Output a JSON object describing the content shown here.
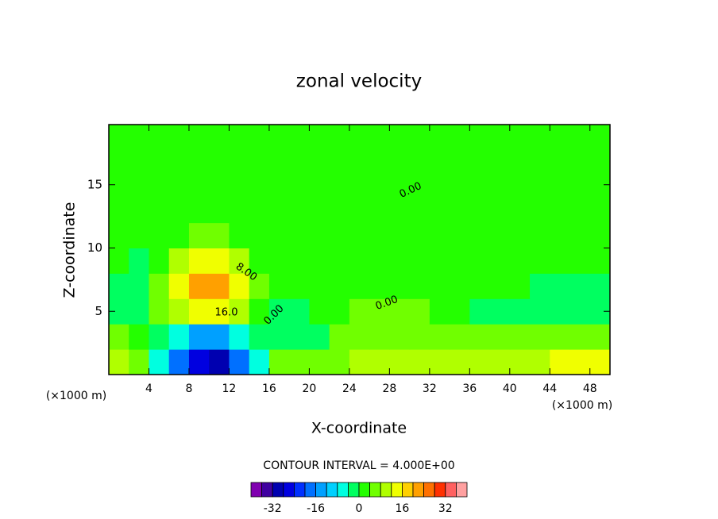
{
  "chart_data": {
    "type": "contour",
    "title": "zonal velocity",
    "xlabel": "X-coordinate",
    "ylabel": "Z-coordinate",
    "x_unit": "(×1000 m)",
    "contour_interval_text": "CONTOUR INTERVAL = 4.000E+00",
    "contour_labels": [
      "0.00",
      "8.00",
      "16.0",
      "0.00",
      "0.00"
    ],
    "xlim": [
      0,
      50
    ],
    "ylim": [
      0,
      19.75
    ],
    "xticks": [
      4,
      8,
      12,
      16,
      20,
      24,
      28,
      32,
      36,
      40,
      44,
      48
    ],
    "yticks": [
      5,
      10,
      15
    ],
    "x": [
      1,
      3,
      5,
      7,
      9,
      11,
      13,
      15,
      17,
      19,
      21,
      23,
      25,
      27,
      29,
      31,
      33,
      35,
      37,
      39,
      41,
      43,
      45,
      47,
      49
    ],
    "y": [
      1,
      3,
      5,
      7,
      9,
      11,
      13,
      15,
      17,
      19
    ],
    "z": [
      [
        8,
        4,
        -6,
        -18,
        -28,
        -30,
        -20,
        -6,
        4,
        6,
        6,
        6,
        8,
        8,
        8,
        8,
        8,
        10,
        10,
        10,
        10,
        10,
        12,
        12,
        12
      ],
      [
        4,
        2,
        -2,
        -8,
        -14,
        -14,
        -8,
        -2,
        -2,
        -4,
        -2,
        4,
        6,
        6,
        6,
        4,
        4,
        4,
        4,
        4,
        6,
        6,
        6,
        6,
        6
      ],
      [
        -2,
        -2,
        4,
        10,
        14,
        14,
        10,
        2,
        -4,
        -2,
        0,
        2,
        4,
        4,
        6,
        4,
        2,
        0,
        -2,
        -2,
        -2,
        -2,
        -4,
        -4,
        -2
      ],
      [
        -2,
        -2,
        6,
        14,
        22,
        22,
        14,
        6,
        2,
        0,
        0,
        2,
        2,
        2,
        2,
        2,
        2,
        0,
        0,
        0,
        0,
        -2,
        -2,
        -2,
        -2
      ],
      [
        0,
        -2,
        2,
        8,
        12,
        12,
        8,
        2,
        0,
        0,
        0,
        2,
        2,
        2,
        2,
        2,
        2,
        2,
        2,
        2,
        2,
        2,
        2,
        2,
        2
      ],
      [
        0,
        0,
        0,
        2,
        4,
        4,
        2,
        0,
        0,
        0,
        0,
        2,
        2,
        2,
        2,
        2,
        2,
        2,
        2,
        2,
        2,
        2,
        2,
        2,
        2
      ],
      [
        0,
        2,
        2,
        2,
        2,
        2,
        2,
        2,
        2,
        2,
        0,
        0,
        2,
        2,
        2,
        2,
        2,
        2,
        2,
        2,
        2,
        2,
        2,
        2,
        2
      ],
      [
        0,
        2,
        2,
        2,
        2,
        2,
        2,
        2,
        2,
        2,
        2,
        2,
        0,
        2,
        2,
        2,
        2,
        2,
        2,
        2,
        2,
        2,
        2,
        2,
        0
      ],
      [
        0,
        2,
        2,
        2,
        2,
        2,
        2,
        2,
        2,
        2,
        2,
        2,
        2,
        2,
        2,
        2,
        2,
        2,
        2,
        2,
        2,
        2,
        2,
        2,
        0
      ],
      [
        0,
        2,
        2,
        2,
        2,
        2,
        2,
        2,
        2,
        2,
        2,
        2,
        2,
        2,
        2,
        2,
        2,
        2,
        2,
        2,
        2,
        2,
        2,
        2,
        0
      ]
    ],
    "levels": [
      -40,
      -36,
      -32,
      -28,
      -24,
      -20,
      -16,
      -12,
      -8,
      -4,
      0,
      4,
      8,
      12,
      16,
      20,
      24,
      28,
      32,
      36,
      40
    ],
    "colors": [
      "#8000b0",
      "#4000a0",
      "#0000b0",
      "#0000e0",
      "#0030ff",
      "#0070ff",
      "#00a0ff",
      "#00d0ff",
      "#00ffe0",
      "#00ff60",
      "#24ff00",
      "#70ff00",
      "#b0ff00",
      "#f0ff00",
      "#ffd000",
      "#ffa000",
      "#ff7000",
      "#ff3000",
      "#ff6060",
      "#ffa0a0"
    ],
    "colorbar_ticks": [
      -32,
      -16,
      0,
      16,
      32
    ]
  }
}
